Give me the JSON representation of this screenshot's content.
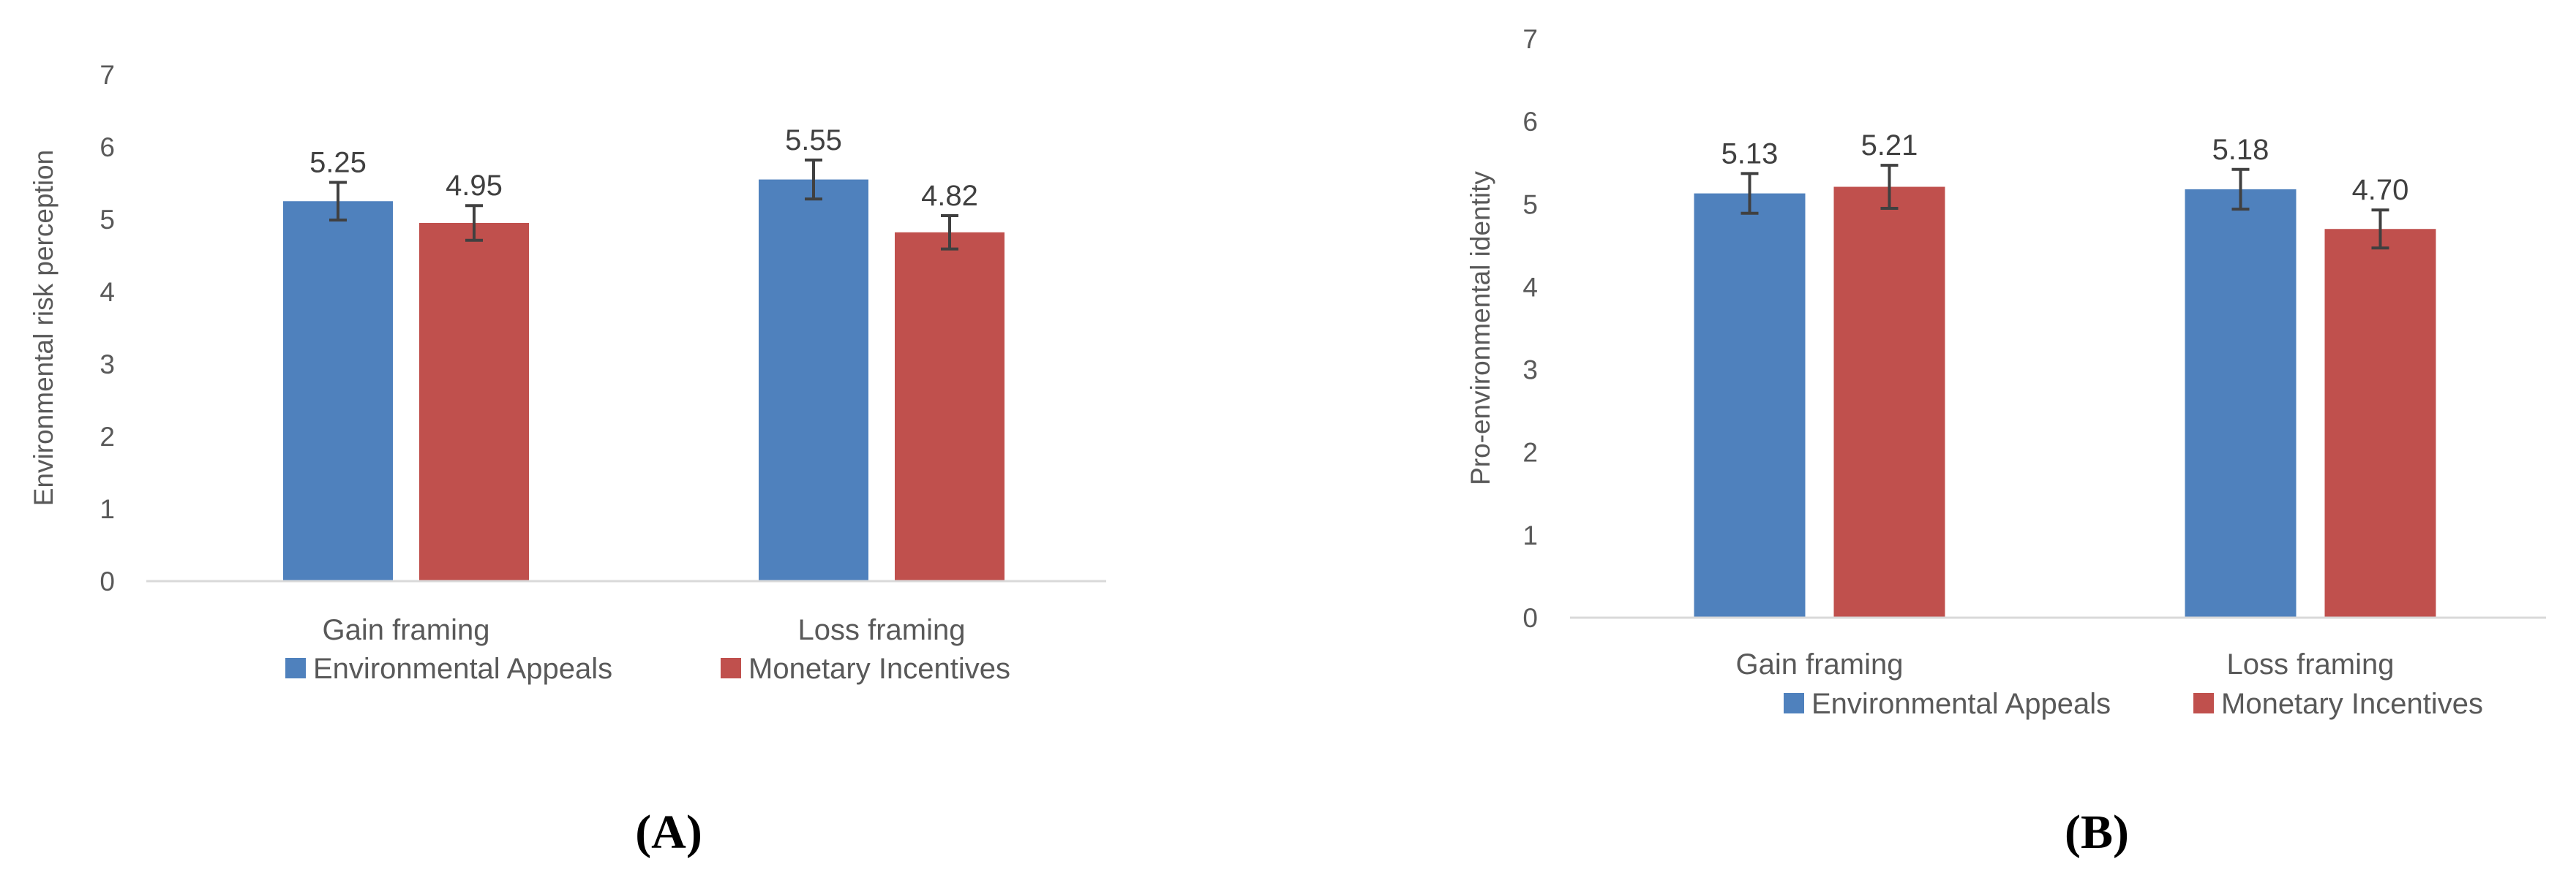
{
  "chart_data": [
    {
      "type": "bar",
      "panel_label": "(A)",
      "categories": [
        "Gain framing",
        "Loss framing"
      ],
      "series": [
        {
          "name": "Environmental Appeals",
          "color": "#4f81bd",
          "values": [
            5.25,
            5.55
          ],
          "labels": [
            "5.25",
            "5.55"
          ],
          "error": [
            0.26,
            0.27
          ]
        },
        {
          "name": "Monetary Incentives",
          "color": "#c0504d",
          "values": [
            4.95,
            4.82
          ],
          "labels": [
            "4.95",
            "4.82"
          ],
          "error": [
            0.24,
            0.23
          ]
        }
      ],
      "ylabel": "Environmental risk perception",
      "xlabel": "",
      "ylim": [
        0,
        7
      ],
      "yticks": [
        "0",
        "1",
        "2",
        "3",
        "4",
        "5",
        "6",
        "7"
      ],
      "grid": false,
      "legend_position": "bottom"
    },
    {
      "type": "bar",
      "panel_label": "(B)",
      "categories": [
        "Gain framing",
        "Loss framing"
      ],
      "series": [
        {
          "name": "Environmental Appeals",
          "color": "#4f81bd",
          "values": [
            5.13,
            5.18
          ],
          "labels": [
            "5.13",
            "5.18"
          ],
          "error": [
            0.24,
            0.24
          ]
        },
        {
          "name": "Monetary Incentives",
          "color": "#c0504d",
          "values": [
            5.21,
            4.7
          ],
          "labels": [
            "5.21",
            "4.70"
          ],
          "error": [
            0.26,
            0.23
          ]
        }
      ],
      "ylabel": "Pro-environmental identity",
      "xlabel": "",
      "ylim": [
        0,
        7
      ],
      "yticks": [
        "0",
        "1",
        "2",
        "3",
        "4",
        "5",
        "6",
        "7"
      ],
      "grid": false,
      "legend_position": "bottom"
    }
  ]
}
